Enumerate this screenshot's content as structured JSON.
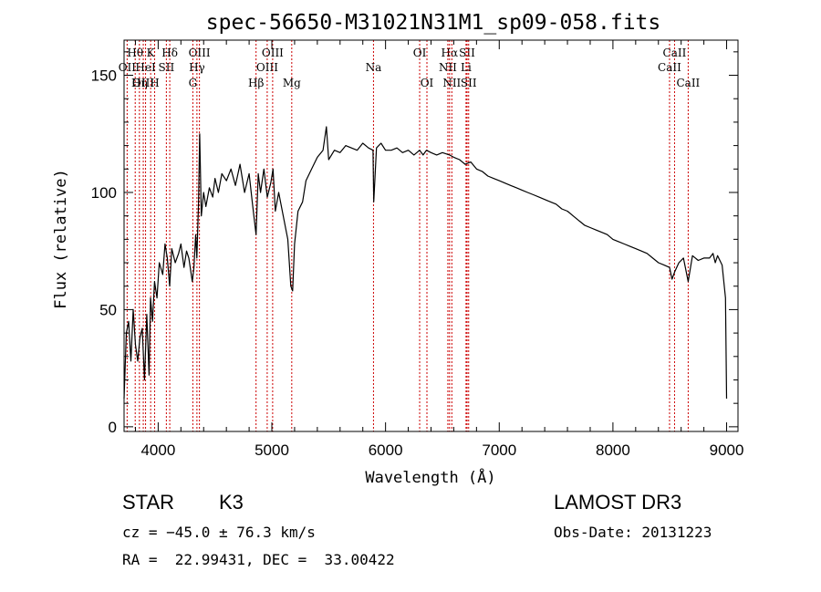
{
  "chart_data": {
    "type": "line",
    "title": "spec-56650-M31021N31M1_sp09-058.fits",
    "xlabel": "Wavelength (Å)",
    "ylabel": "Flux (relative)",
    "xlim": [
      3700,
      9100
    ],
    "ylim": [
      -2,
      165
    ],
    "xticks": [
      4000,
      5000,
      6000,
      7000,
      8000,
      9000
    ],
    "yticks": [
      0,
      50,
      100,
      150
    ],
    "series": [
      {
        "name": "flux",
        "x": [
          3700,
          3720,
          3740,
          3760,
          3780,
          3800,
          3820,
          3840,
          3860,
          3880,
          3900,
          3920,
          3933,
          3950,
          3968,
          3990,
          4010,
          4040,
          4060,
          4080,
          4101,
          4120,
          4150,
          4180,
          4200,
          4227,
          4250,
          4270,
          4300,
          4315,
          4330,
          4340,
          4355,
          4365,
          4380,
          4400,
          4420,
          4450,
          4480,
          4500,
          4530,
          4560,
          4600,
          4640,
          4680,
          4720,
          4760,
          4800,
          4830,
          4861,
          4880,
          4900,
          4930,
          4960,
          4990,
          5010,
          5030,
          5060,
          5100,
          5140,
          5167,
          5183,
          5200,
          5230,
          5270,
          5300,
          5350,
          5400,
          5450,
          5480,
          5500,
          5550,
          5600,
          5650,
          5700,
          5750,
          5800,
          5850,
          5890,
          5896,
          5920,
          5960,
          6000,
          6050,
          6100,
          6150,
          6200,
          6250,
          6300,
          6330,
          6360,
          6400,
          6450,
          6500,
          6563,
          6600,
          6650,
          6700,
          6750,
          6800,
          6850,
          6900,
          6950,
          7000,
          7050,
          7100,
          7150,
          7200,
          7250,
          7300,
          7350,
          7400,
          7450,
          7500,
          7550,
          7600,
          7650,
          7700,
          7750,
          7800,
          7850,
          7900,
          7950,
          8000,
          8050,
          8100,
          8150,
          8200,
          8250,
          8300,
          8350,
          8400,
          8450,
          8498,
          8520,
          8542,
          8580,
          8620,
          8662,
          8700,
          8750,
          8800,
          8850,
          8880,
          8900,
          8920,
          8960,
          8990,
          9000
        ],
        "values": [
          12,
          40,
          45,
          28,
          50,
          35,
          28,
          38,
          42,
          20,
          48,
          22,
          55,
          45,
          62,
          55,
          70,
          65,
          78,
          72,
          60,
          76,
          70,
          74,
          78,
          68,
          75,
          72,
          62,
          68,
          82,
          72,
          95,
          125,
          90,
          100,
          94,
          102,
          98,
          106,
          100,
          108,
          105,
          110,
          103,
          112,
          100,
          108,
          95,
          82,
          108,
          100,
          110,
          98,
          104,
          110,
          92,
          100,
          90,
          80,
          60,
          58,
          78,
          92,
          96,
          105,
          110,
          115,
          118,
          128,
          114,
          118,
          117,
          120,
          119,
          118,
          121,
          119,
          118,
          96,
          119,
          121,
          118,
          118,
          119,
          117,
          118,
          116,
          118,
          116,
          118,
          117,
          116,
          117,
          116,
          115,
          114,
          112,
          113,
          110,
          109,
          107,
          106,
          105,
          104,
          103,
          102,
          101,
          100,
          99,
          98,
          97,
          96,
          95,
          93,
          92,
          90,
          88,
          86,
          85,
          84,
          83,
          82,
          80,
          79,
          78,
          77,
          76,
          75,
          74,
          72,
          70,
          69,
          68,
          63,
          66,
          70,
          72,
          62,
          73,
          71,
          72,
          72,
          74,
          70,
          73,
          69,
          55,
          12
        ]
      }
    ],
    "lines": [
      {
        "label": "Hθ",
        "wave": 3798,
        "row": 1
      },
      {
        "label": "OII",
        "wave": 3727,
        "row": 2
      },
      {
        "label": "OIII",
        "wave": 3869,
        "row": 3
      },
      {
        "label": "Hη",
        "wave": 3835,
        "row": 3
      },
      {
        "label": "K",
        "wave": 3934,
        "row": 1
      },
      {
        "label": "H",
        "wave": 3969,
        "row": 3
      },
      {
        "label": "HeI",
        "wave": 3889,
        "row": 2
      },
      {
        "label": "SII",
        "wave": 4072,
        "row": 2
      },
      {
        "label": "Hδ",
        "wave": 4102,
        "row": 1
      },
      {
        "label": "G",
        "wave": 4305,
        "row": 3
      },
      {
        "label": "OIII",
        "wave": 4363,
        "row": 1
      },
      {
        "label": "Hγ",
        "wave": 4341,
        "row": 2
      },
      {
        "label": "Hβ",
        "wave": 4861,
        "row": 3
      },
      {
        "label": "OIII",
        "wave": 4959,
        "row": 2
      },
      {
        "label": "OIII",
        "wave": 5007,
        "row": 1
      },
      {
        "label": "Mg",
        "wave": 5175,
        "row": 3
      },
      {
        "label": "Na",
        "wave": 5894,
        "row": 2
      },
      {
        "label": "OI",
        "wave": 6300,
        "row": 1
      },
      {
        "label": "OI",
        "wave": 6364,
        "row": 3
      },
      {
        "label": "Hα",
        "wave": 6563,
        "row": 1
      },
      {
        "label": "NII",
        "wave": 6548,
        "row": 2
      },
      {
        "label": "NII",
        "wave": 6583,
        "row": 3
      },
      {
        "label": "SII",
        "wave": 6717,
        "row": 1
      },
      {
        "label": "Li",
        "wave": 6708,
        "row": 2
      },
      {
        "label": "SII",
        "wave": 6731,
        "row": 3
      },
      {
        "label": "CaII",
        "wave": 8542,
        "row": 1
      },
      {
        "label": "CaII",
        "wave": 8498,
        "row": 2
      },
      {
        "label": "CaII",
        "wave": 8662,
        "row": 3
      }
    ]
  },
  "info": {
    "class_label": "STAR",
    "subclass": "K3",
    "cz": "cz = −45.0 ± 76.3 km/s",
    "coords": "RA =  22.99431, DEC =  33.00422",
    "survey": "LAMOST DR3",
    "obs_date": "Obs-Date: 20131223"
  },
  "colors": {
    "line_marker": "#cc0000",
    "spectrum": "#000000",
    "axes": "#000000"
  }
}
